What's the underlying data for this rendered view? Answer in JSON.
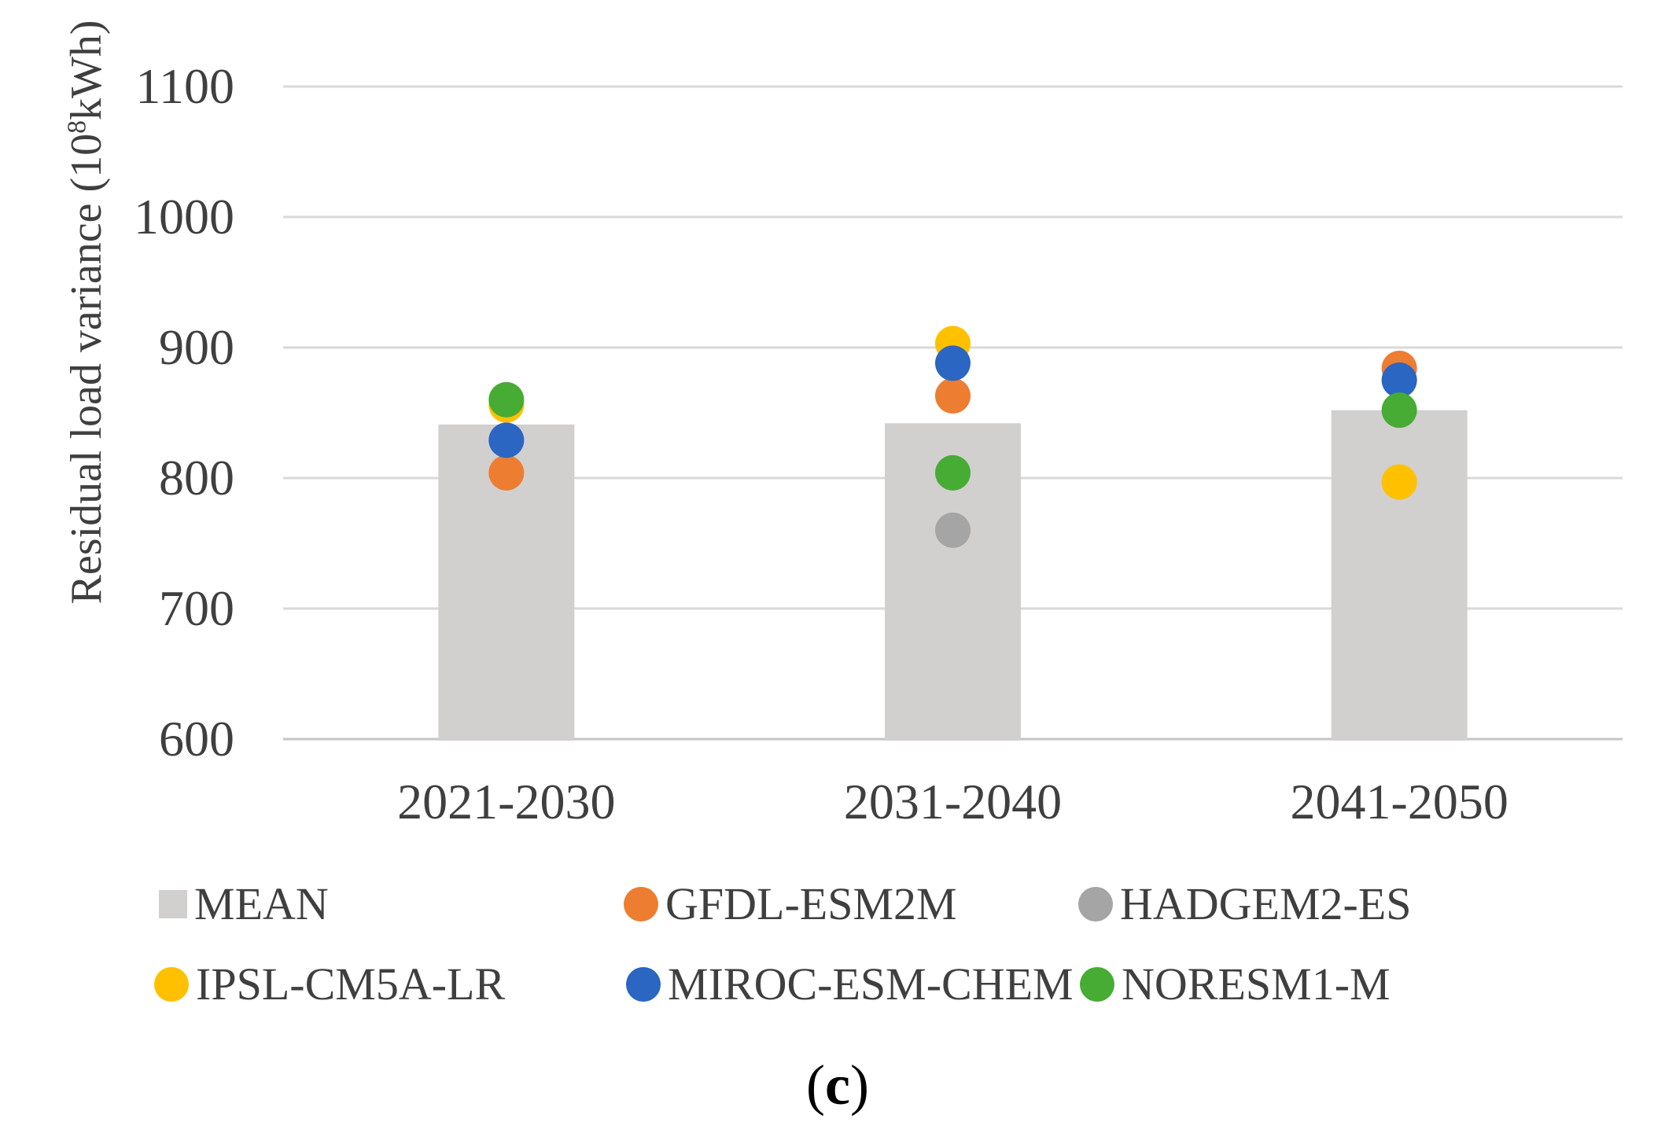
{
  "figure": {
    "y_axis_title": {
      "prefix": "Residual load variance (10",
      "superscript": "8",
      "suffix": "kWh)"
    },
    "caption": {
      "open": "(",
      "letter": "c",
      "close": ")"
    }
  },
  "colors": {
    "bar_fill": "#d2cfcf",
    "gridline": "#d9d9d9",
    "axis_line": "#c6c4c4",
    "text": "#3f3f3f"
  },
  "chart_data": {
    "type": "bar+scatter",
    "title": "",
    "xlabel": "",
    "ylabel": "Residual load variance (10^8 kWh)",
    "ylim": [
      600,
      1100
    ],
    "y_ticks": [
      1100,
      1000,
      900,
      800,
      700,
      600
    ],
    "grid": true,
    "legend_position": "bottom",
    "categories": [
      "2021-2030",
      "2031-2040",
      "2041-2050"
    ],
    "bar_series": {
      "name": "MEAN",
      "color": "#d2cfcf",
      "values": [
        841,
        842,
        852
      ]
    },
    "point_series": [
      {
        "name": "GFDL-ESM2M",
        "color": "#ed7d31",
        "values": [
          804,
          863,
          884
        ]
      },
      {
        "name": "HADGEM2-ES",
        "color": "#a5a5a5",
        "values": [
          null,
          760,
          null
        ]
      },
      {
        "name": "IPSL-CM5A-LR",
        "color": "#ffc000",
        "values": [
          856,
          903,
          797
        ]
      },
      {
        "name": "MIROC-ESM-CHEM",
        "color": "#2a66c2",
        "values": [
          829,
          888,
          875
        ]
      },
      {
        "name": "NORESM1-M",
        "color": "#46ac34",
        "values": [
          860,
          804,
          852
        ]
      }
    ]
  }
}
